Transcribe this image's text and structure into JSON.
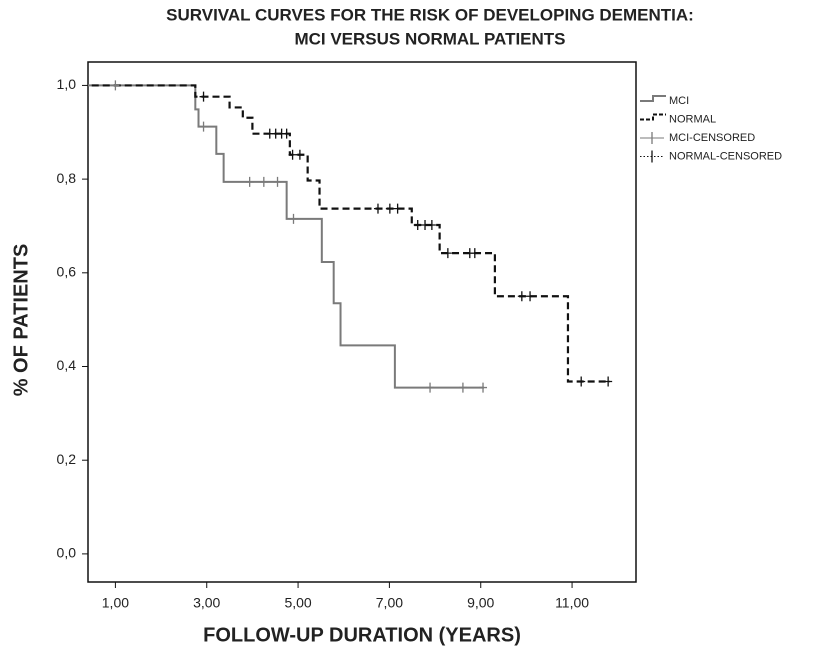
{
  "chart_data": {
    "type": "step",
    "title": "SURVIVAL CURVES FOR THE RISK OF DEVELOPING DEMENTIA:",
    "subtitle": "MCI VERSUS NORMAL PATIENTS",
    "x_label": "FOLLOW-UP DURATION (YEARS)",
    "y_label": "% OF PATIENTS",
    "xlim": [
      0.4,
      12.4
    ],
    "xticks": [
      {
        "value": 1,
        "label": "1,00"
      },
      {
        "value": 3,
        "label": "3,00"
      },
      {
        "value": 5,
        "label": "5,00"
      },
      {
        "value": 7,
        "label": "7,00"
      },
      {
        "value": 9,
        "label": "9,00"
      },
      {
        "value": 11,
        "label": "11,00"
      }
    ],
    "ylim": [
      -0.06,
      1.05
    ],
    "yticks": [
      {
        "value": 0,
        "label": "0,0"
      },
      {
        "value": 0.2,
        "label": "0,2"
      },
      {
        "value": 0.4,
        "label": "0,4"
      },
      {
        "value": 0.6,
        "label": "0,6"
      },
      {
        "value": 0.8,
        "label": "0,8"
      },
      {
        "value": 1,
        "label": "1,0"
      }
    ],
    "grid": false,
    "legend": "right",
    "series": [
      {
        "name": "MCI",
        "color": "#7a7a7a",
        "style": "solid",
        "x": [
          0,
          2.75,
          2.82,
          3.21,
          3.37,
          4.75,
          5.52,
          5.78,
          5.93,
          7.12,
          9.07
        ],
        "values": [
          1.0,
          0.949,
          0.912,
          0.854,
          0.794,
          0.715,
          0.623,
          0.535,
          0.445,
          0.355,
          0.355
        ]
      },
      {
        "name": "NORMAL",
        "color": "#111111",
        "style": "dashed",
        "x": [
          0,
          2.75,
          3.5,
          3.79,
          4.0,
          4.82,
          5.21,
          5.47,
          7.49,
          8.1,
          9.31,
          10.91,
          11.83
        ],
        "values": [
          1.0,
          0.976,
          0.953,
          0.931,
          0.897,
          0.852,
          0.797,
          0.737,
          0.702,
          0.642,
          0.55,
          0.368,
          0.368
        ]
      },
      {
        "name": "MCI-CENSORED",
        "color": "#7a7a7a",
        "style": "censor",
        "x": [
          1.0,
          2.93,
          3.94,
          4.25,
          4.55,
          4.9,
          7.89,
          8.61,
          9.05
        ],
        "values": [
          1.0,
          0.912,
          0.794,
          0.794,
          0.794,
          0.715,
          0.355,
          0.355,
          0.355
        ]
      },
      {
        "name": "NORMAL-CENSORED",
        "color": "#111111",
        "style": "censor",
        "x": [
          2.93,
          4.38,
          4.51,
          4.64,
          4.75,
          4.88,
          5.04,
          6.75,
          7.01,
          7.18,
          7.62,
          7.78,
          7.93,
          8.28,
          8.76,
          8.87,
          9.9,
          10.08,
          11.2,
          11.79
        ],
        "values": [
          0.976,
          0.897,
          0.897,
          0.897,
          0.897,
          0.852,
          0.852,
          0.737,
          0.737,
          0.737,
          0.702,
          0.702,
          0.702,
          0.642,
          0.642,
          0.642,
          0.55,
          0.55,
          0.368,
          0.368
        ]
      }
    ]
  }
}
